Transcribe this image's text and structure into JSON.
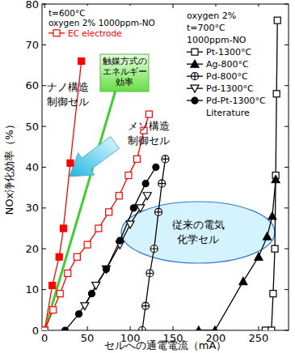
{
  "chart_data": {
    "type": "line",
    "x_label": "セルへの通電電流（mA）",
    "y_label": "NOx浄化効率（%）",
    "xlim": [
      -3,
      285
    ],
    "ylim": [
      0,
      80
    ],
    "xticks": [
      0,
      50,
      100,
      150,
      200,
      250
    ],
    "yticks": [
      0,
      10,
      20,
      30,
      40,
      50,
      60,
      70,
      80
    ],
    "grid": false,
    "series": [
      {
        "color": "#ff0000",
        "marker": "square",
        "line_style": "solid",
        "x": [
          0,
          9,
          17,
          22,
          30,
          43
        ],
        "values": [
          0,
          11,
          18,
          25,
          41,
          66
        ]
      },
      {
        "name": "EC electrode",
        "color": "#ff0000",
        "marker": "square-open",
        "line_style": "solid",
        "x": [
          0,
          10,
          18,
          27,
          38,
          50,
          63,
          75,
          87,
          98,
          108,
          116,
          122
        ],
        "values": [
          0,
          5,
          9,
          14,
          18,
          21,
          25,
          29,
          33,
          38,
          42,
          49,
          53
        ]
      },
      {
        "name": "Pt-1300°C",
        "color": "#000000",
        "marker": "square-open",
        "line_style": "solid",
        "x": [
          258,
          265,
          267,
          269,
          270,
          271,
          272
        ],
        "values": [
          0,
          0,
          9,
          20,
          38,
          58,
          76
        ]
      },
      {
        "name": "Ag-800°C",
        "color": "#000000",
        "marker": "triangle",
        "line_style": "solid",
        "x": [
          180,
          199,
          232,
          250,
          260,
          266,
          270
        ],
        "values": [
          0,
          0,
          12,
          18,
          23,
          28,
          37
        ]
      },
      {
        "name": "Pd-800°C",
        "color": "#000000",
        "marker": "circle-plus",
        "line_style": "solid",
        "x": [
          114,
          118,
          123,
          128,
          133,
          137,
          141
        ],
        "values": [
          0,
          6,
          14,
          20,
          29,
          36,
          42
        ]
      },
      {
        "name": "Pd-1300°C",
        "color": "#000000",
        "marker": "triangle-down-open",
        "line_style": "solid",
        "x": [
          47,
          60,
          72,
          88,
          100,
          112,
          120
        ],
        "values": [
          6,
          11,
          15,
          21,
          26,
          30,
          33
        ]
      },
      {
        "name": "Pd-Pt-1300°C",
        "color": "#000000",
        "marker": "circle",
        "line_style": "solid",
        "x": [
          24,
          40,
          55,
          72,
          88,
          104,
          118,
          130
        ],
        "values": [
          0,
          4,
          9,
          15,
          22,
          30,
          36,
          40
        ]
      }
    ],
    "legend_boxes": [
      {
        "header": [
          "t=600°C",
          "oxygen 2% 1000ppm-NO"
        ],
        "entries": [
          1
        ]
      },
      {
        "header": [
          "oxygen 2%",
          "t=700°C",
          "1000ppm-NO"
        ],
        "entries": [
          2,
          3,
          4,
          5,
          6
        ],
        "footer": "Literature"
      }
    ],
    "annotations": [
      {
        "text": [
          "ナノ構造",
          "制御セル"
        ]
      },
      {
        "text": [
          "メソ構造",
          "制御セル"
        ]
      },
      {
        "text": [
          "触媒方式の",
          "エネルギー",
          "効率"
        ]
      },
      {
        "text": [
          "従来の電気",
          "化学セル"
        ]
      }
    ]
  }
}
